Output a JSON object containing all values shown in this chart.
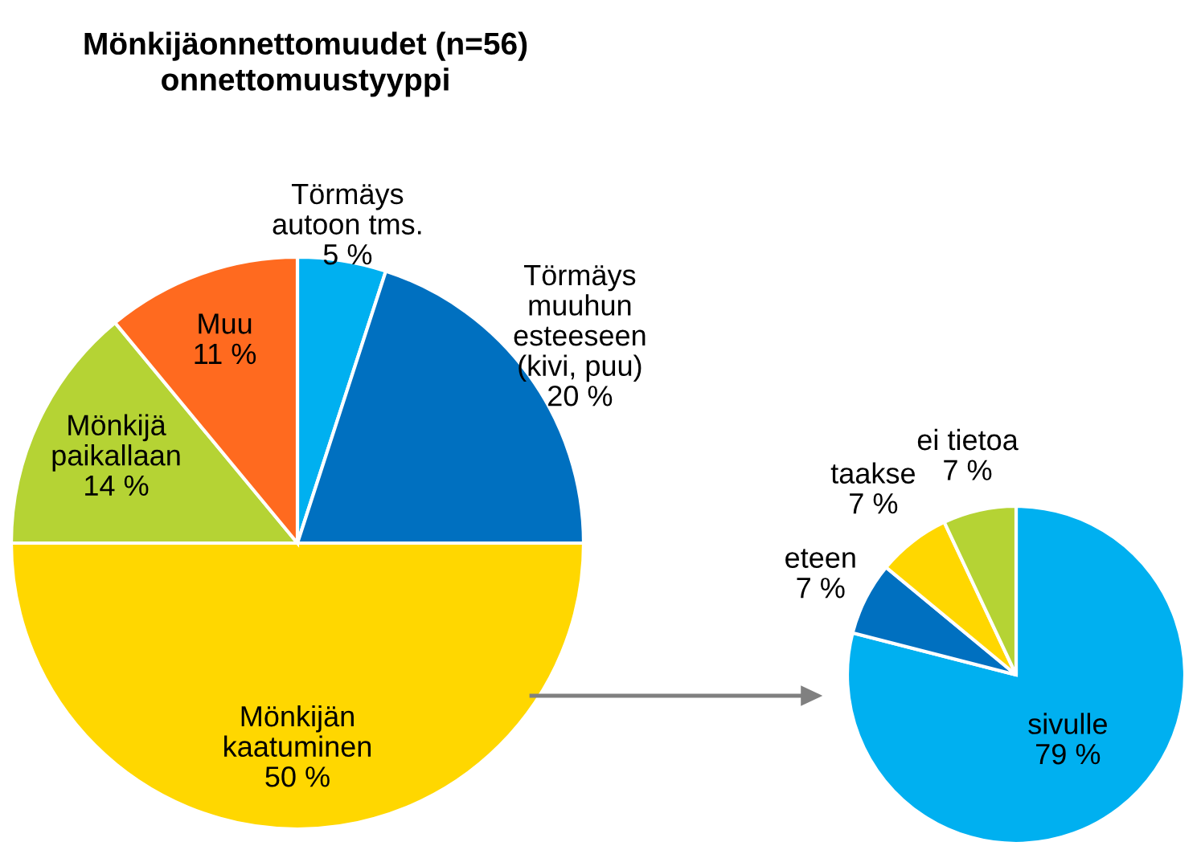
{
  "chart_data": [
    {
      "type": "pie",
      "title": "Mönkijäonnettomuudet (n=56)\nonnettomuustyyppi",
      "categories": [
        "Törmäys\nautoon tms.",
        "Törmäys\nmuuhun\nesteeseen\n(kivi, puu)",
        "Mönkijän\nkaatuminen",
        "Mönkijä\npaikallaan",
        "Muu"
      ],
      "values": [
        5,
        20,
        50,
        14,
        11
      ],
      "value_labels": [
        "5 %",
        "20 %",
        "50 %",
        "14 %",
        "11 %"
      ],
      "colors": [
        "#00b0f0",
        "#0070c0",
        "#ffd700",
        "#b5d334",
        "#ff6a1f"
      ]
    },
    {
      "type": "pie",
      "categories": [
        "sivulle",
        "eteen",
        "taakse",
        "ei tietoa"
      ],
      "values": [
        79,
        7,
        7,
        7
      ],
      "value_labels": [
        "79 %",
        "7 %",
        "7 %",
        "7 %"
      ],
      "colors": [
        "#00b0f0",
        "#0070c0",
        "#ffd700",
        "#b5d334"
      ]
    }
  ]
}
